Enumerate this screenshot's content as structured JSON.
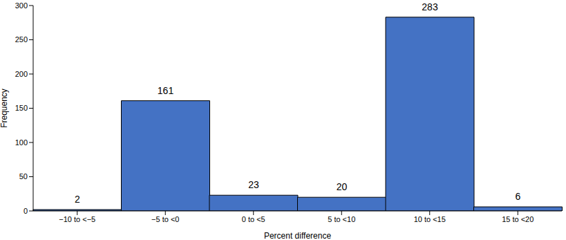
{
  "chart_data": {
    "type": "bar",
    "categories": [
      "−10 to <−5",
      "−5 to <0",
      "0 to <5",
      "5 to <10",
      "10 to <15",
      "15 to <20"
    ],
    "values": [
      2,
      161,
      23,
      20,
      283,
      6
    ],
    "color": "#4472c4",
    "xlabel": "Percent difference",
    "ylabel": "Frequency",
    "ylim": [
      0,
      300
    ],
    "yticks": [
      0,
      50,
      100,
      150,
      200,
      250,
      300
    ],
    "grid": false,
    "data_labels": true
  }
}
